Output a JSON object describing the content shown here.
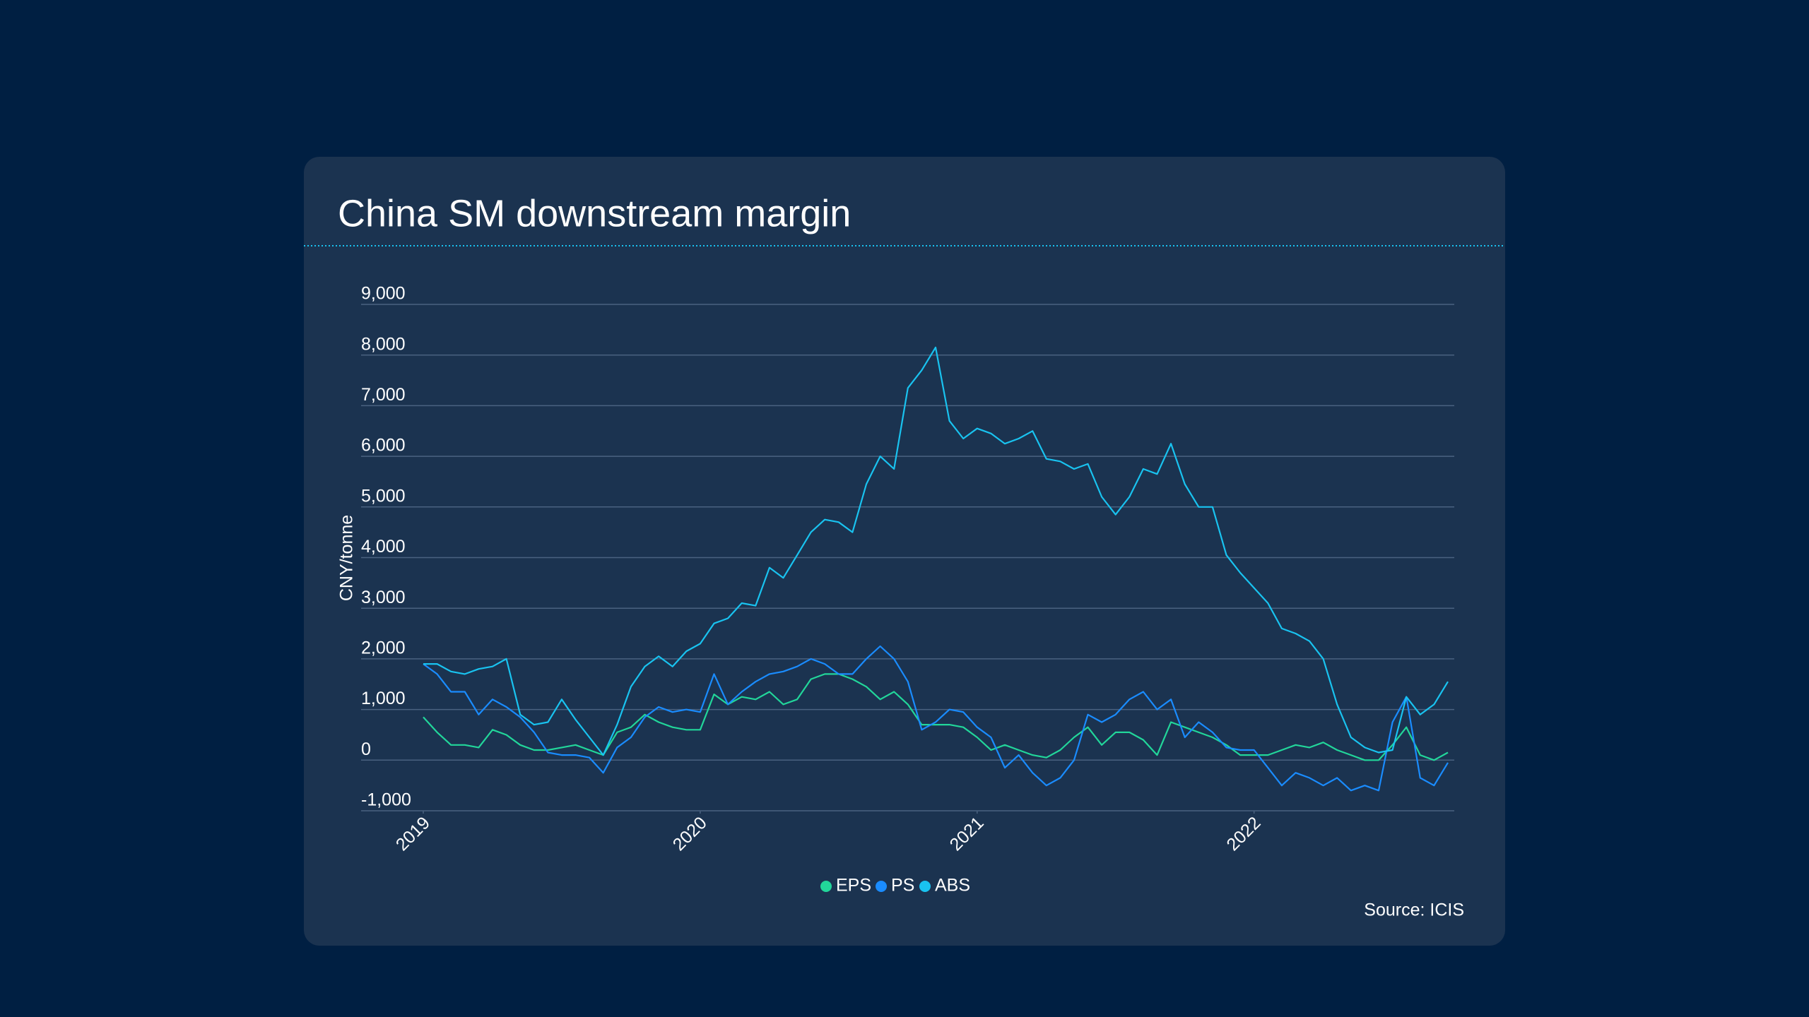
{
  "chart_data": {
    "type": "line",
    "title": "China SM downstream margin",
    "y_label": "CNY/tonne",
    "source": "Source: ICIS",
    "x": [
      2019.0,
      2019.05,
      2019.1,
      2019.15,
      2019.2,
      2019.25,
      2019.3,
      2019.35,
      2019.4,
      2019.45,
      2019.5,
      2019.55,
      2019.6,
      2019.65,
      2019.7,
      2019.75,
      2019.8,
      2019.85,
      2019.9,
      2019.95,
      2020.0,
      2020.05,
      2020.1,
      2020.15,
      2020.2,
      2020.25,
      2020.3,
      2020.35,
      2020.4,
      2020.45,
      2020.5,
      2020.55,
      2020.6,
      2020.65,
      2020.7,
      2020.75,
      2020.8,
      2020.85,
      2020.9,
      2020.95,
      2021.0,
      2021.05,
      2021.1,
      2021.15,
      2021.2,
      2021.25,
      2021.3,
      2021.35,
      2021.4,
      2021.45,
      2021.5,
      2021.55,
      2021.6,
      2021.65,
      2021.7,
      2021.75,
      2021.8,
      2021.85,
      2021.9,
      2021.95,
      2022.0,
      2022.05,
      2022.1,
      2022.15,
      2022.2,
      2022.25,
      2022.3,
      2022.35,
      2022.4,
      2022.45,
      2022.5,
      2022.55,
      2022.6,
      2022.65,
      2022.7
    ],
    "series": [
      {
        "name": "EPS",
        "color": "#22d69a",
        "values": [
          850,
          550,
          300,
          300,
          250,
          600,
          500,
          300,
          200,
          200,
          250,
          300,
          200,
          100,
          550,
          650,
          900,
          750,
          650,
          600,
          600,
          1300,
          1100,
          1250,
          1200,
          1350,
          1100,
          1200,
          1600,
          1700,
          1700,
          1600,
          1450,
          1200,
          1350,
          1100,
          700,
          700,
          700,
          650,
          450,
          200,
          300,
          200,
          100,
          50,
          200,
          450,
          650,
          300,
          550,
          550,
          400,
          100,
          750,
          650,
          550,
          450,
          300,
          100,
          100,
          100,
          200,
          300,
          250,
          350,
          200,
          100,
          0,
          0,
          300,
          650,
          100,
          0,
          150
        ]
      },
      {
        "name": "PS",
        "color": "#1a8cff",
        "values": [
          1900,
          1700,
          1350,
          1350,
          900,
          1200,
          1050,
          850,
          550,
          150,
          100,
          100,
          50,
          -250,
          250,
          450,
          850,
          1050,
          950,
          1000,
          950,
          1700,
          1100,
          1350,
          1550,
          1700,
          1750,
          1850,
          2000,
          1900,
          1700,
          1700,
          2000,
          2250,
          2000,
          1550,
          600,
          750,
          1000,
          950,
          650,
          450,
          -150,
          100,
          -250,
          -500,
          -350,
          0,
          900,
          750,
          900,
          1200,
          1350,
          1000,
          1200,
          450,
          750,
          550,
          250,
          200,
          200,
          -150,
          -500,
          -250,
          -350,
          -500,
          -350,
          -600,
          -500,
          -600,
          750,
          1250,
          -350,
          -500,
          -50
        ]
      },
      {
        "name": "ABS",
        "color": "#19c3f0",
        "values": [
          1900,
          1900,
          1750,
          1700,
          1800,
          1850,
          2000,
          900,
          700,
          750,
          1200,
          800,
          450,
          100,
          700,
          1450,
          1850,
          2050,
          1850,
          2150,
          2300,
          2700,
          2800,
          3100,
          3050,
          3800,
          3600,
          4050,
          4500,
          4750,
          4700,
          4500,
          5450,
          6000,
          5750,
          7350,
          7700,
          8150,
          6700,
          6350,
          6550,
          6450,
          6250,
          6350,
          6500,
          5950,
          5900,
          5750,
          5850,
          5200,
          4850,
          5200,
          5750,
          5650,
          6250,
          5450,
          5000,
          5000,
          4050,
          3700,
          3400,
          3100,
          2600,
          2500,
          2350,
          2000,
          1100,
          450,
          250,
          150,
          200,
          1250,
          900,
          1100,
          1550
        ]
      }
    ],
    "xlim": [
      2019,
      2022.7
    ],
    "xticks": [
      2019,
      2020,
      2021,
      2022
    ],
    "ylim": [
      -1000,
      9000
    ],
    "yticks": [
      {
        "value": -1000,
        "label": "-1,000"
      },
      0,
      {
        "value": 1000,
        "label": "1,000"
      },
      {
        "value": 2000,
        "label": "2,000"
      },
      {
        "value": 3000,
        "label": "3,000"
      },
      {
        "value": 4000,
        "label": "4,000"
      },
      {
        "value": 5000,
        "label": "5,000"
      },
      {
        "value": 6000,
        "label": "6,000"
      },
      {
        "value": 7000,
        "label": "7,000"
      },
      {
        "value": 8000,
        "label": "8,000"
      },
      {
        "value": 9000,
        "label": "9,000"
      }
    ],
    "grid": true,
    "legend": "bottom"
  }
}
